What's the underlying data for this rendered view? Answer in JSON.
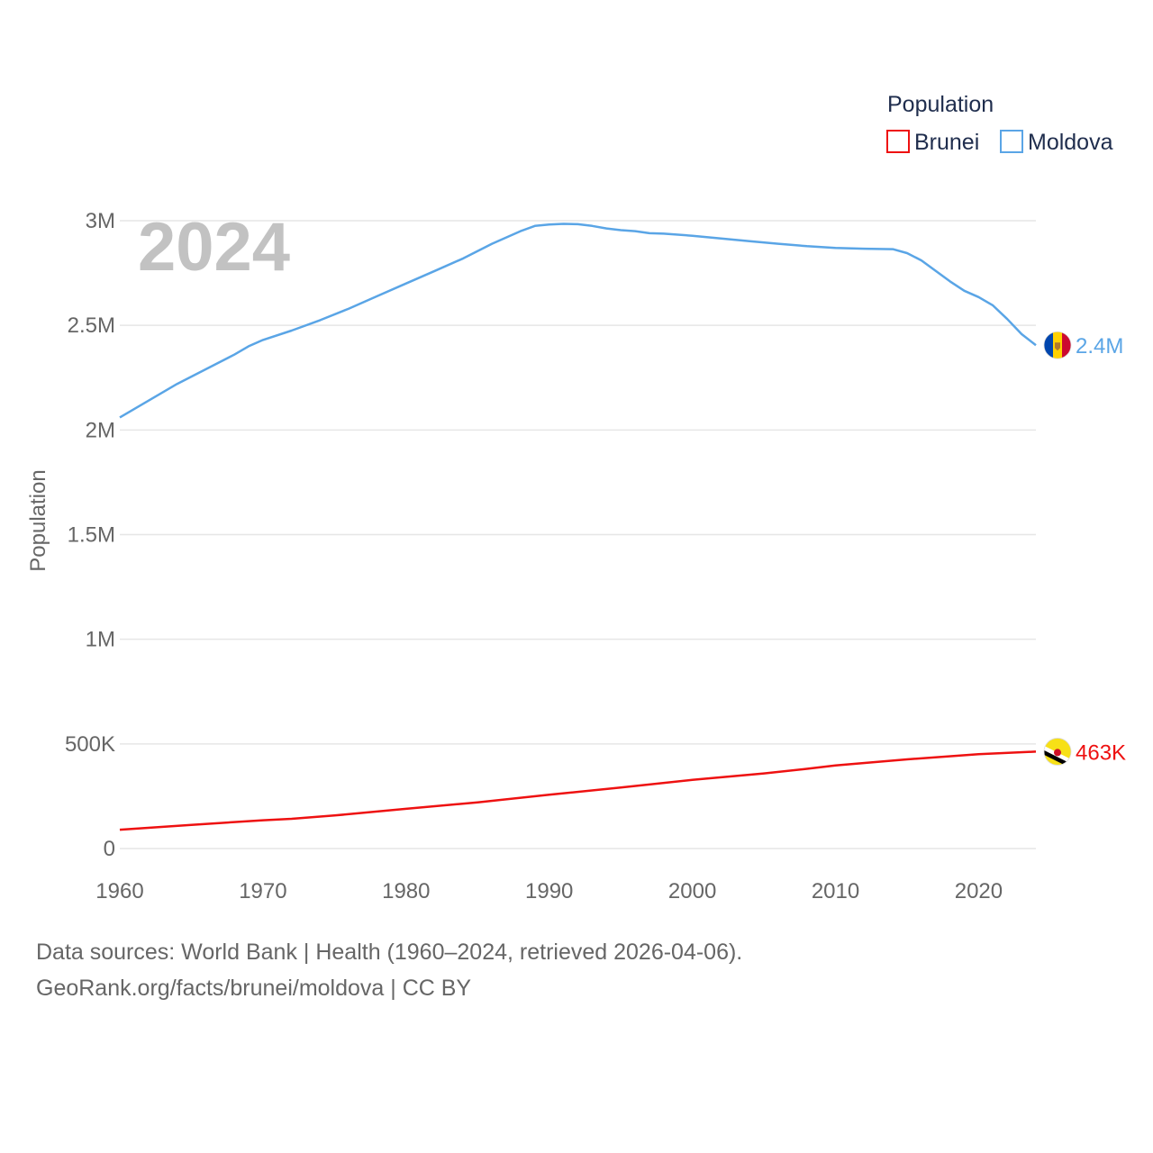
{
  "chart_data": {
    "type": "line",
    "title": "Population",
    "current_year_label": "2024",
    "ylabel": "Population",
    "xlim": [
      1960,
      2024
    ],
    "ylim": [
      0,
      3000000
    ],
    "x_ticks": [
      1960,
      1970,
      1980,
      1990,
      2000,
      2010,
      2020
    ],
    "y_ticks": [
      {
        "value": 0,
        "label": "0"
      },
      {
        "value": 500000,
        "label": "500K"
      },
      {
        "value": 1000000,
        "label": "1M"
      },
      {
        "value": 1500000,
        "label": "1.5M"
      },
      {
        "value": 2000000,
        "label": "2M"
      },
      {
        "value": 2500000,
        "label": "2.5M"
      },
      {
        "value": 3000000,
        "label": "3M"
      }
    ],
    "grid": true,
    "legend_position": "top-right",
    "series": [
      {
        "name": "Brunei",
        "color": "#ee1111",
        "end_label": "463K",
        "flag": "brunei-flag",
        "points": [
          [
            1960,
            90000
          ],
          [
            1965,
            113000
          ],
          [
            1970,
            135000
          ],
          [
            1972,
            142000
          ],
          [
            1975,
            158000
          ],
          [
            1980,
            190000
          ],
          [
            1985,
            221000
          ],
          [
            1990,
            257000
          ],
          [
            1995,
            292000
          ],
          [
            2000,
            328000
          ],
          [
            2005,
            359000
          ],
          [
            2008,
            381000
          ],
          [
            2010,
            397000
          ],
          [
            2015,
            426000
          ],
          [
            2020,
            451000
          ],
          [
            2024,
            463000
          ]
        ]
      },
      {
        "name": "Moldova",
        "color": "#5aa5e6",
        "end_label": "2.4M",
        "flag": "moldova-flag",
        "points": [
          [
            1960,
            2060000
          ],
          [
            1962,
            2140000
          ],
          [
            1964,
            2220000
          ],
          [
            1966,
            2290000
          ],
          [
            1968,
            2360000
          ],
          [
            1969,
            2400000
          ],
          [
            1970,
            2430000
          ],
          [
            1972,
            2475000
          ],
          [
            1974,
            2525000
          ],
          [
            1976,
            2580000
          ],
          [
            1978,
            2640000
          ],
          [
            1980,
            2700000
          ],
          [
            1982,
            2760000
          ],
          [
            1984,
            2820000
          ],
          [
            1986,
            2890000
          ],
          [
            1988,
            2950000
          ],
          [
            1989,
            2975000
          ],
          [
            1990,
            2982000
          ],
          [
            1991,
            2985000
          ],
          [
            1992,
            2983000
          ],
          [
            1993,
            2975000
          ],
          [
            1994,
            2963000
          ],
          [
            1995,
            2955000
          ],
          [
            1996,
            2950000
          ],
          [
            1997,
            2940000
          ],
          [
            1998,
            2938000
          ],
          [
            2000,
            2928000
          ],
          [
            2002,
            2915000
          ],
          [
            2004,
            2902000
          ],
          [
            2006,
            2890000
          ],
          [
            2008,
            2878000
          ],
          [
            2010,
            2870000
          ],
          [
            2012,
            2866000
          ],
          [
            2014,
            2864000
          ],
          [
            2015,
            2845000
          ],
          [
            2016,
            2810000
          ],
          [
            2017,
            2760000
          ],
          [
            2018,
            2710000
          ],
          [
            2019,
            2665000
          ],
          [
            2020,
            2635000
          ],
          [
            2021,
            2595000
          ],
          [
            2022,
            2530000
          ],
          [
            2023,
            2458000
          ],
          [
            2024,
            2405000
          ]
        ]
      }
    ]
  },
  "footer": {
    "sources": "Data sources: World Bank | Health (1960–2024, retrieved 2026-04-06).",
    "credit": "GeoRank.org/facts/brunei/moldova | CC BY"
  }
}
